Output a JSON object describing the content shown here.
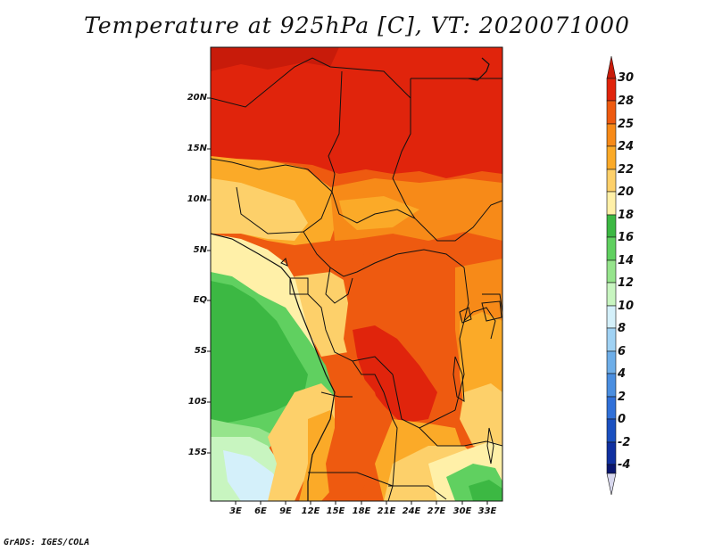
{
  "title": "Temperature at 925hPa [C], VT: 2020071000",
  "credit": "GrADS: IGES/COLA",
  "map": {
    "lat_labels": [
      "20N",
      "15N",
      "10N",
      "5N",
      "EQ",
      "5S",
      "10S",
      "15S"
    ],
    "lon_labels": [
      "3E",
      "6E",
      "9E",
      "12E",
      "15E",
      "18E",
      "21E",
      "24E",
      "27E",
      "30E",
      "33E"
    ]
  },
  "colorbar": {
    "labels": [
      "30",
      "28",
      "25",
      "24",
      "22",
      "20",
      "18",
      "16",
      "14",
      "12",
      "10",
      "8",
      "6",
      "4",
      "2",
      "0",
      "-2",
      "-4"
    ],
    "colors": {
      "over": "#c81b0a",
      "c28_30": "#e0240c",
      "c25_28": "#ee5a10",
      "c24_25": "#f78a18",
      "c22_24": "#fbaa28",
      "c20_22": "#fdd06a",
      "c18_20": "#fff0a8",
      "c16_18": "#3cb843",
      "c14_16": "#60d060",
      "c12_14": "#96e48c",
      "c10_12": "#c8f5c0",
      "c8_10": "#d4f0fa",
      "c6_8": "#a0d2f4",
      "c4_6": "#6eaee8",
      "c2_4": "#4a8ee0",
      "c0_2": "#3070d8",
      "cm2_0": "#1a50c0",
      "cm4_m2": "#1030a0",
      "under": "#0a1670"
    }
  }
}
